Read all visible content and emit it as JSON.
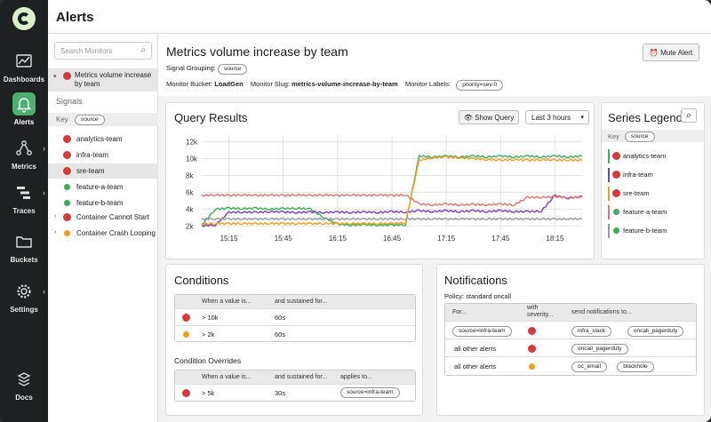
{
  "nav": {
    "items": [
      {
        "label": "Dashboards",
        "icon": "dashboard-icon"
      },
      {
        "label": "Alerts",
        "icon": "bell-icon"
      },
      {
        "label": "Metrics",
        "icon": "metrics-icon"
      },
      {
        "label": "Traces",
        "icon": "traces-icon"
      },
      {
        "label": "Buckets",
        "icon": "folder-icon"
      },
      {
        "label": "Settings",
        "icon": "gear-icon"
      },
      {
        "label": "Docs",
        "icon": "docs-icon"
      }
    ]
  },
  "header": {
    "title": "Alerts"
  },
  "monitors": {
    "search_placeholder": "Search Monitors",
    "selected": {
      "label": "Metrics volume increase by team",
      "severity": "red"
    },
    "signals_heading": "Signals",
    "key_label": "Key",
    "key_value": "source",
    "signals": [
      {
        "label": "analytics-team",
        "severity": "red"
      },
      {
        "label": "infra-team",
        "severity": "red"
      },
      {
        "label": "sre-team",
        "severity": "red"
      },
      {
        "label": "feature-a-team",
        "severity": "green"
      },
      {
        "label": "feature-b-team",
        "severity": "green"
      }
    ],
    "others": [
      {
        "label": "Container Cannot Start",
        "severity": "red"
      },
      {
        "label": "Container Crash Looping",
        "severity": "orange"
      }
    ]
  },
  "monitor_detail": {
    "title": "Metrics volume increase by team",
    "mute_label": "Mute Alert",
    "signal_grouping_label": "Signal Grouping:",
    "signal_grouping_value": "source",
    "bucket_label": "Monitor Bucket:",
    "bucket_value": "LoadGen",
    "slug_label": "Monitor Slug:",
    "slug_value": "metrics-volume-increase-by-team",
    "labels_label": "Monitor Labels:",
    "labels_value": "priority=sev-0"
  },
  "query_results": {
    "title": "Query Results",
    "show_query_label": "Show Query",
    "range_label": "Last 3 hours"
  },
  "chart_data": {
    "type": "line",
    "x": [
      "15:00",
      "15:08",
      "15:15",
      "15:23",
      "15:30",
      "15:38",
      "15:45",
      "15:53",
      "16:00",
      "16:08",
      "16:15",
      "16:23",
      "16:30",
      "16:38",
      "16:45",
      "16:53",
      "17:00",
      "17:08",
      "17:15",
      "17:23",
      "17:30",
      "17:38",
      "17:45",
      "17:53",
      "18:00",
      "18:08",
      "18:15",
      "18:23",
      "18:30"
    ],
    "xtick_labels": [
      "15:15",
      "15:45",
      "16:15",
      "16:45",
      "17:15",
      "17:45",
      "18:15"
    ],
    "yticks": [
      2000,
      4000,
      6000,
      8000,
      10000,
      12000
    ],
    "ytick_labels": [
      "2k",
      "4k",
      "6k",
      "8k",
      "10k",
      "12k"
    ],
    "ylim": [
      1500,
      12800
    ],
    "grid": true,
    "series": [
      {
        "name": "analytics-team",
        "color": "#3cae5a",
        "values": [
          2100,
          4000,
          4100,
          4050,
          4100,
          4000,
          4050,
          4100,
          4000,
          3000,
          2200,
          2100,
          2150,
          2100,
          2100,
          2150,
          10300,
          10200,
          10300,
          10200,
          10300,
          10200,
          10300,
          10200,
          10300,
          10200,
          10300,
          10200,
          10300
        ]
      },
      {
        "name": "infra-team",
        "color": "#7b3fc4",
        "values": [
          2000,
          2100,
          3600,
          3650,
          3600,
          3700,
          3650,
          3600,
          3650,
          3600,
          3650,
          3600,
          3650,
          3600,
          3700,
          3650,
          3800,
          3700,
          3800,
          3700,
          3800,
          3700,
          3800,
          3700,
          3700,
          3750,
          5600,
          5300,
          5500
        ]
      },
      {
        "name": "sre-team",
        "color": "#f0a020",
        "values": [
          2200,
          2300,
          2250,
          2300,
          2250,
          2300,
          2250,
          2300,
          2250,
          2300,
          2250,
          2300,
          2250,
          2300,
          2250,
          2400,
          9800,
          10100,
          10200,
          10100,
          10000,
          9900,
          9800,
          9900,
          9800,
          9900,
          9800,
          9850,
          9800
        ]
      },
      {
        "name": "feature-a-team",
        "color": "#e8716a",
        "values": [
          5600,
          5700,
          5600,
          5700,
          5600,
          5700,
          5600,
          5700,
          5600,
          5700,
          5600,
          5700,
          5600,
          5700,
          5600,
          5700,
          4600,
          4500,
          4600,
          4500,
          4550,
          4500,
          4600,
          4500,
          5400,
          5400,
          5450,
          5400,
          5400
        ]
      },
      {
        "name": "feature-b-team",
        "color": "#999999",
        "values": [
          2800,
          2850,
          2800,
          2850,
          2800,
          2850,
          2800,
          2850,
          2800,
          2850,
          2800,
          2850,
          2800,
          2850,
          2800,
          2850,
          2800,
          2850,
          2800,
          2850,
          2800,
          2850,
          2800,
          2850,
          2800,
          2850,
          2800,
          2850,
          2800
        ]
      }
    ]
  },
  "legend": {
    "title": "Series Legend",
    "key_label": "Key",
    "key_value": "source",
    "items": [
      {
        "label": "analytics-team",
        "color": "#3cae5a",
        "severity": "red"
      },
      {
        "label": "infra-team",
        "color": "#7b3fc4",
        "severity": "red"
      },
      {
        "label": "sre-team",
        "color": "#f0a020",
        "severity": "red"
      },
      {
        "label": "feature-a-team",
        "color": "#e8716a",
        "severity": "green"
      },
      {
        "label": "feature-b-team",
        "color": "#999999",
        "severity": "green"
      }
    ]
  },
  "conditions": {
    "title": "Conditions",
    "col_value": "When a value is...",
    "col_sustained": "and sustained for...",
    "rows": [
      {
        "severity": "red",
        "value": "> 10k",
        "sustained": "60s"
      },
      {
        "severity": "orange",
        "value": "> 2k",
        "sustained": "60s"
      }
    ],
    "overrides_title": "Condition Overrides",
    "override_col_applies": "applies to...",
    "overrides": [
      {
        "severity": "red",
        "value": "> 5k",
        "sustained": "30s",
        "applies": "source=infra-team"
      }
    ]
  },
  "notifications": {
    "title": "Notifications",
    "policy": "Policy: standard oncall",
    "col_for": "For...",
    "col_severity_1": "with",
    "col_severity_2": "severity...",
    "col_send": "send notifications to...",
    "rows": [
      {
        "for": "source=infra-team",
        "for_is_pill": true,
        "severity": "red",
        "targets": [
          "infra_slack",
          "oncall_pagerduty"
        ]
      },
      {
        "for": "all other alerts",
        "for_is_pill": false,
        "severity": "red",
        "targets": [
          "oncall_pagerduty"
        ]
      },
      {
        "for": "all other alerts",
        "for_is_pill": false,
        "severity": "orange",
        "targets": [
          "oc_email",
          "blackhole"
        ]
      }
    ]
  }
}
